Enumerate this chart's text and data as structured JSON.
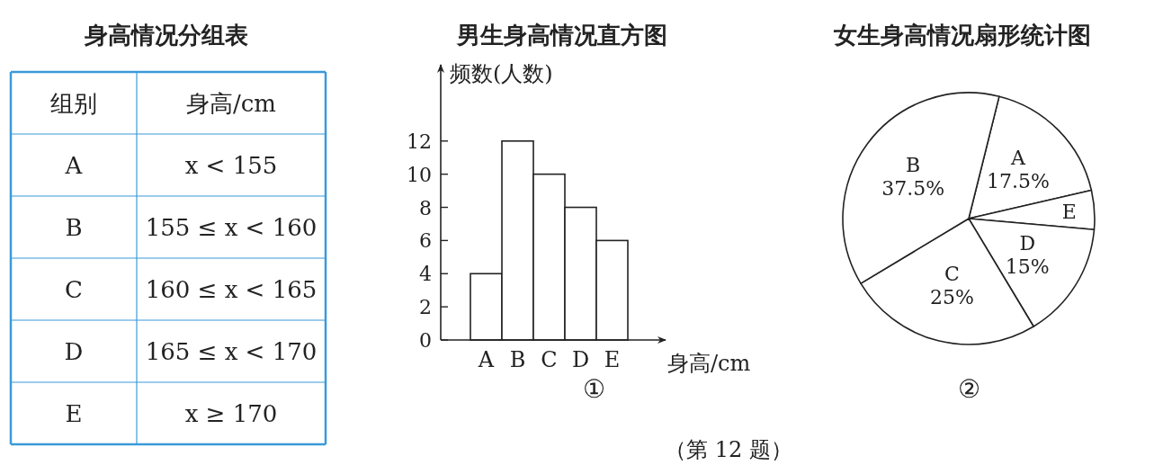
{
  "chart_data": [
    {
      "type": "other",
      "title": "身高情况分组表",
      "color": "#3a9ad9",
      "annotations": [
        "组别",
        "身高/cm",
        "A",
        "x < 155",
        "B",
        "155 ≤ x < 160",
        "C",
        "160 ≤ x < 165",
        "D",
        "165 ≤ x < 170",
        "E",
        "x ≥ 170"
      ]
    },
    {
      "type": "bar",
      "title": "男生身高情况直方图",
      "ylabel": "频数(人数)",
      "xlabel": "身高/cm",
      "categories": [
        "A",
        "B",
        "C",
        "D",
        "E"
      ],
      "values": [
        4,
        12,
        10,
        8,
        6
      ],
      "color": "#ffffff",
      "ylim": [
        0,
        16.6
      ],
      "yticks": [
        0,
        2,
        4,
        6,
        8,
        10,
        12
      ],
      "annotations": [
        "①"
      ]
    },
    {
      "type": "pie",
      "title": "女生身高情况扇形统计图",
      "categories": [
        "A",
        "E",
        "D",
        "C",
        "B"
      ],
      "values": [
        17.5,
        5,
        15,
        25,
        37.5
      ],
      "value_labels": [
        "17.5%",
        null,
        "15%",
        "25%",
        "37.5%"
      ],
      "colors": [
        "#ffffff",
        "#ffffff",
        "#ffffff",
        "#ffffff",
        "#ffffff"
      ],
      "annotations": [
        "②",
        "（第 12 题）"
      ]
    }
  ]
}
